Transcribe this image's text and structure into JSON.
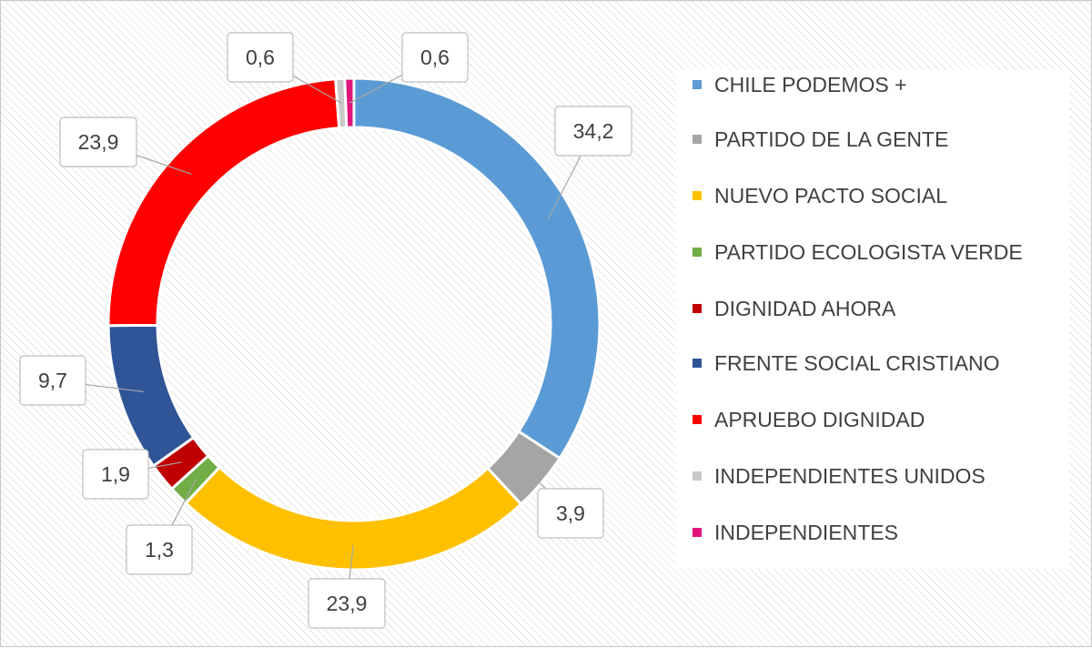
{
  "chart_data": {
    "type": "pie",
    "variant": "donut",
    "title": "",
    "legend_position": "right",
    "series": [
      {
        "name": "CHILE PODEMOS +",
        "value": 34.2,
        "label": "34,2",
        "color": "#5b9bd5"
      },
      {
        "name": "PARTIDO DE LA GENTE",
        "value": 3.9,
        "label": "3,9",
        "color": "#a5a5a5"
      },
      {
        "name": "NUEVO PACTO SOCIAL",
        "value": 23.9,
        "label": "23,9",
        "color": "#ffc000"
      },
      {
        "name": "PARTIDO ECOLOGISTA VERDE",
        "value": 1.3,
        "label": "1,3",
        "color": "#70ad47"
      },
      {
        "name": "DIGNIDAD AHORA",
        "value": 1.9,
        "label": "1,9",
        "color": "#c00000"
      },
      {
        "name": "FRENTE SOCIAL CRISTIANO",
        "value": 9.7,
        "label": "9,7",
        "color": "#2f5597"
      },
      {
        "name": "APRUEBO DIGNIDAD",
        "value": 23.9,
        "label": "23,9",
        "color": "#ff0000"
      },
      {
        "name": "INDEPENDIENTES UNIDOS",
        "value": 0.6,
        "label": "0,6",
        "color": "#c9c9c9"
      },
      {
        "name": "INDEPENDIENTES",
        "value": 0.6,
        "label": "0,6",
        "color": "#e0157a"
      }
    ]
  }
}
